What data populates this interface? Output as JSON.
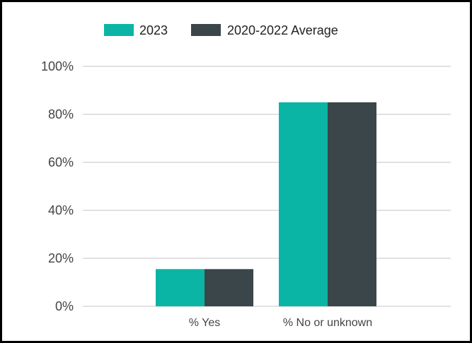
{
  "chart_data": {
    "type": "bar",
    "categories": [
      "% Yes",
      "% No or unknown"
    ],
    "series": [
      {
        "name": "2023",
        "values": [
          15.5,
          85
        ],
        "color": "#0bb5a5"
      },
      {
        "name": "2020-2022 Average",
        "values": [
          15.5,
          85
        ],
        "color": "#3a4649"
      }
    ],
    "ylim": [
      0,
      100
    ],
    "yticks": [
      "0%",
      "20%",
      "40%",
      "60%",
      "80%",
      "100%"
    ],
    "ytick_values": [
      0,
      20,
      40,
      60,
      80,
      100
    ],
    "grid": true,
    "legend_position": "top",
    "title": "",
    "xlabel": "",
    "ylabel": ""
  }
}
